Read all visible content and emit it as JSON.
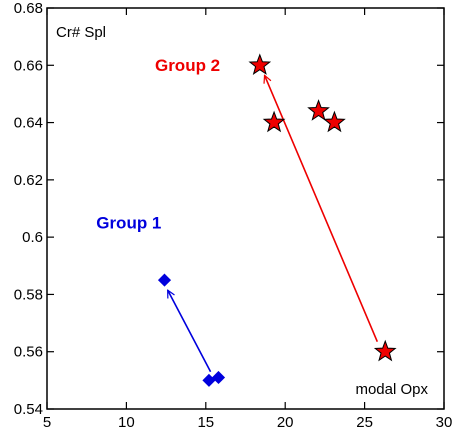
{
  "chart_data": {
    "type": "scatter",
    "title": "",
    "xlabel": "modal Opx",
    "ylabel": "Cr# Spl",
    "xlim": [
      5,
      30
    ],
    "ylim": [
      0.54,
      0.68
    ],
    "xticks": [
      5,
      10,
      15,
      20,
      25,
      30
    ],
    "yticks": [
      0.54,
      0.56,
      0.58,
      0.6,
      0.62,
      0.64,
      0.66,
      0.68
    ],
    "xtick_labels": [
      "5",
      "10",
      "15",
      "20",
      "25",
      "30"
    ],
    "ytick_labels": [
      "0.54",
      "0.56",
      "0.58",
      "0.6",
      "0.62",
      "0.64",
      "0.66",
      "0.68"
    ],
    "grid": false,
    "series": [
      {
        "name": "Group 1",
        "color": "#0000dd",
        "marker": "diamond",
        "points": [
          {
            "x": 12.4,
            "y": 0.585
          },
          {
            "x": 15.2,
            "y": 0.55
          },
          {
            "x": 15.8,
            "y": 0.551
          }
        ]
      },
      {
        "name": "Group 2",
        "color": "#ee0000",
        "marker": "star",
        "points": [
          {
            "x": 18.4,
            "y": 0.66
          },
          {
            "x": 19.3,
            "y": 0.64
          },
          {
            "x": 22.1,
            "y": 0.644
          },
          {
            "x": 23.1,
            "y": 0.64
          },
          {
            "x": 26.3,
            "y": 0.56
          }
        ]
      }
    ],
    "arrows": [
      {
        "color": "#0000dd",
        "from": [
          15.3,
          0.553
        ],
        "to": [
          12.6,
          0.5815
        ]
      },
      {
        "color": "#ee0000",
        "from": [
          25.8,
          0.5635
        ],
        "to": [
          18.7,
          0.6565
        ]
      }
    ],
    "annotations": [
      {
        "text": "Group 1",
        "color": "#0000dd",
        "x": 8.1,
        "y": 0.603
      },
      {
        "text": "Group 2",
        "color": "#ee0000",
        "x": 11.8,
        "y": 0.658
      }
    ]
  }
}
